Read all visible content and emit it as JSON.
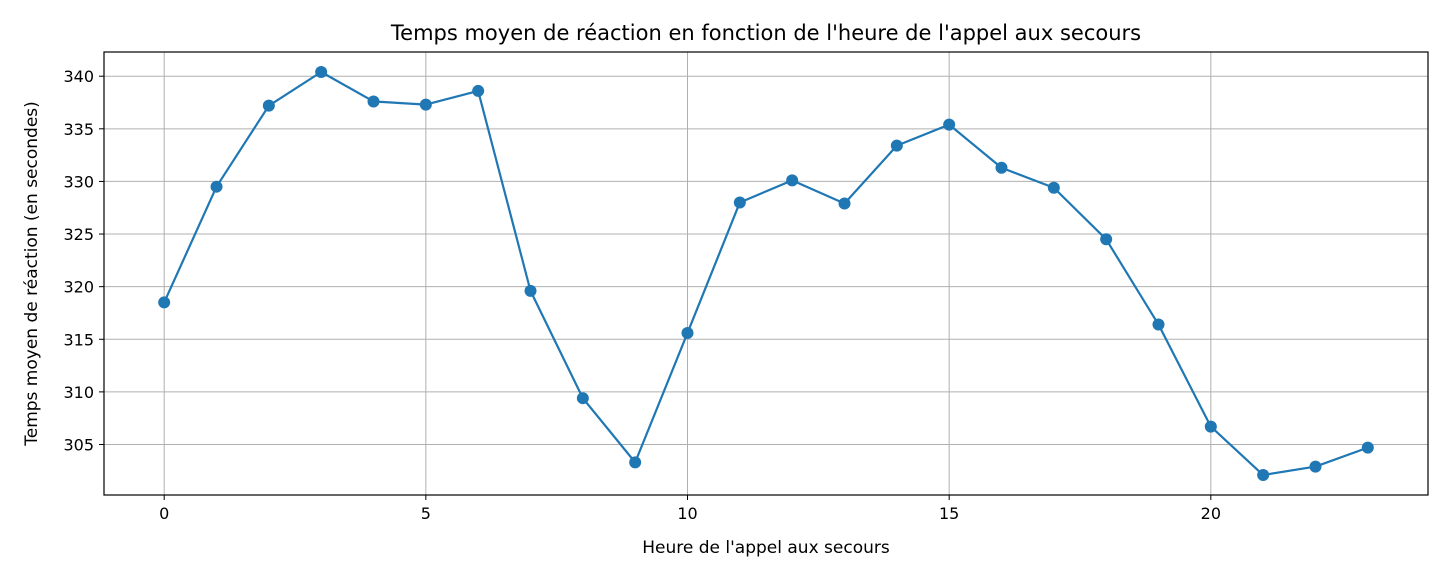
{
  "chart_data": {
    "type": "line",
    "title": "Temps moyen de réaction en fonction de l'heure de l'appel aux secours",
    "xlabel": "Heure de l'appel aux secours",
    "ylabel": "Temps moyen de réaction (en secondes)",
    "x": [
      0,
      1,
      2,
      3,
      4,
      5,
      6,
      7,
      8,
      9,
      10,
      11,
      12,
      13,
      14,
      15,
      16,
      17,
      18,
      19,
      20,
      21,
      22,
      23
    ],
    "series": [
      {
        "values": [
          318.5,
          329.5,
          337.2,
          340.4,
          337.6,
          337.3,
          338.6,
          319.6,
          309.4,
          303.3,
          315.6,
          328.0,
          330.1,
          327.9,
          333.4,
          335.4,
          331.3,
          329.4,
          324.5,
          316.4,
          306.7,
          302.1,
          302.9,
          304.7
        ],
        "color": "#1f77b4"
      }
    ],
    "xlim": [
      -1.15,
      24.15
    ],
    "ylim": [
      300.2,
      342.3
    ],
    "xticks": [
      0,
      5,
      10,
      15,
      20
    ],
    "xtick_labels": [
      "0",
      "5",
      "10",
      "15",
      "20"
    ],
    "yticks": [
      305,
      310,
      315,
      320,
      325,
      330,
      335,
      340
    ],
    "ytick_labels": [
      "305",
      "310",
      "315",
      "320",
      "325",
      "330",
      "335",
      "340"
    ],
    "grid": true,
    "grid_color": "#b0b0b0",
    "marker": "circle"
  }
}
